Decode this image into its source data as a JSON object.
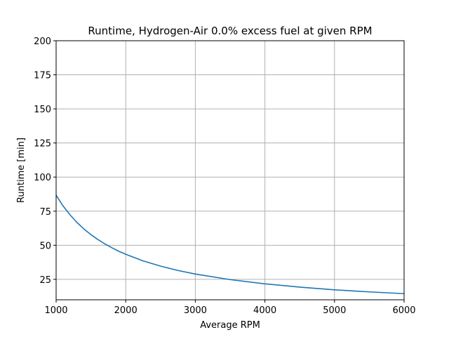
{
  "chart_data": {
    "type": "line",
    "title": "Runtime, Hydrogen-Air 0.0% excess fuel at given RPM",
    "xlabel": "Average RPM",
    "ylabel": "Runtime [min]",
    "xlim": [
      1000,
      6000
    ],
    "ylim": [
      10,
      200
    ],
    "xticks": [
      "1000",
      "2000",
      "3000",
      "4000",
      "5000",
      "6000"
    ],
    "yticks": [
      "25",
      "50",
      "75",
      "100",
      "125",
      "150",
      "175",
      "200"
    ],
    "grid": true,
    "series": [
      {
        "color": "#1f77b4",
        "x": [
          1000,
          1100,
          1200,
          1300,
          1400,
          1500,
          1600,
          1700,
          1800,
          1900,
          2000,
          2250,
          2500,
          2750,
          3000,
          3500,
          4000,
          4500,
          5000,
          5500,
          6000
        ],
        "y": [
          86.7,
          78.8,
          72.3,
          66.7,
          61.9,
          57.8,
          54.2,
          51.0,
          48.2,
          45.6,
          43.4,
          38.5,
          34.7,
          31.5,
          28.9,
          24.8,
          21.7,
          19.3,
          17.3,
          15.8,
          14.5
        ]
      }
    ]
  }
}
